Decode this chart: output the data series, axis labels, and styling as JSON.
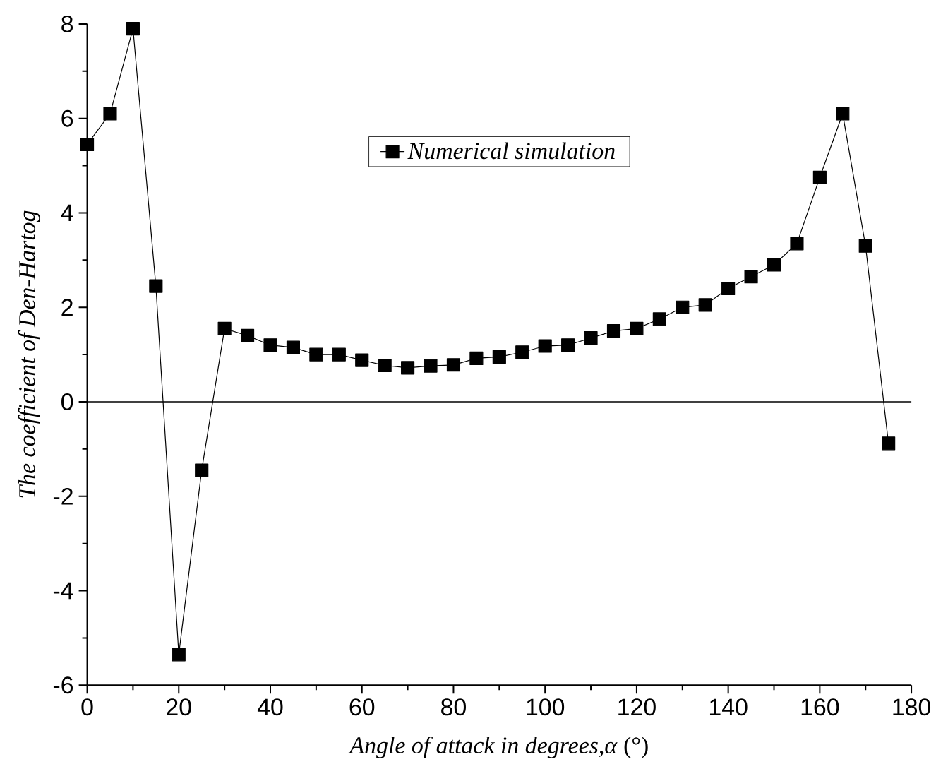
{
  "chart_data": {
    "type": "line",
    "xlabel": "*Angle of attack in degrees,α* (°)",
    "ylabel": "The coefficient of Den-Hartog",
    "x": [
      0,
      5,
      10,
      15,
      20,
      25,
      30,
      35,
      40,
      45,
      50,
      55,
      60,
      65,
      70,
      75,
      80,
      85,
      90,
      95,
      100,
      105,
      110,
      115,
      120,
      125,
      130,
      135,
      140,
      145,
      150,
      155,
      160,
      165,
      170,
      175
    ],
    "series": [
      {
        "name": "Numerical simulation",
        "color": "#000000",
        "values": [
          5.45,
          6.1,
          7.9,
          2.45,
          -5.35,
          -1.45,
          1.55,
          1.4,
          1.2,
          1.15,
          1.0,
          1.0,
          0.88,
          0.77,
          0.72,
          0.76,
          0.78,
          0.92,
          0.95,
          1.05,
          1.18,
          1.2,
          1.35,
          1.5,
          1.55,
          1.75,
          2.0,
          2.05,
          2.4,
          2.65,
          2.9,
          3.35,
          4.75,
          6.1,
          3.3,
          -0.88
        ]
      }
    ],
    "xlim": [
      0,
      180
    ],
    "xticks": [
      0,
      20,
      40,
      60,
      80,
      100,
      120,
      140,
      160,
      180
    ],
    "ylim": [
      -6,
      8
    ],
    "yticks": [
      -6,
      -4,
      -2,
      0,
      2,
      4,
      6,
      8
    ],
    "ref_lines": [
      {
        "axis": "y",
        "value": 0,
        "color": "#000000"
      }
    ],
    "marker": "square",
    "line_style": "solid",
    "grid": false,
    "legend": "top"
  }
}
